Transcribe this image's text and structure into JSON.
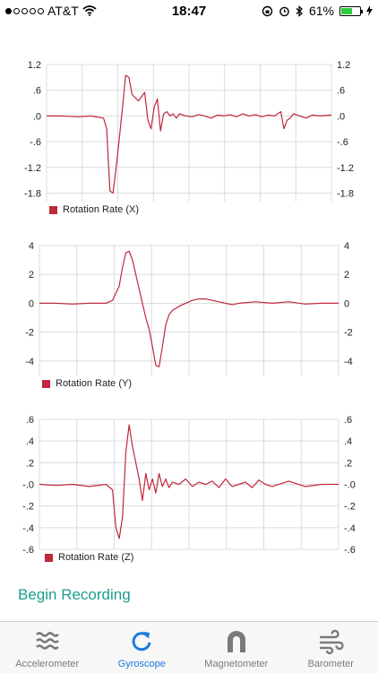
{
  "status": {
    "carrier": "AT&T",
    "time": "18:47",
    "battery_percent": "61%",
    "battery_level": 0.61,
    "signal_filled": 1,
    "signal_total": 5
  },
  "charts": [
    {
      "name": "gyro-x",
      "legend": "Rotation Rate (X)",
      "yticks": [
        "1.2",
        ".6",
        ".0",
        "-.6",
        "-1.2",
        "-1.8"
      ],
      "ylim": [
        -2.0,
        1.2
      ]
    },
    {
      "name": "gyro-y",
      "legend": "Rotation Rate (Y)",
      "yticks": [
        "4",
        "2",
        "0",
        "-2",
        "-4"
      ],
      "ylim": [
        -5,
        4
      ]
    },
    {
      "name": "gyro-z",
      "legend": "Rotation Rate (Z)",
      "yticks": [
        ".6",
        ".4",
        ".2",
        "-.0",
        "-.2",
        "-.4",
        "-.6"
      ],
      "ylim": [
        -0.6,
        0.6
      ]
    }
  ],
  "chart_data": [
    {
      "type": "line",
      "title": "",
      "series": [
        {
          "name": "Rotation Rate (X)",
          "color": "#c0283b",
          "x": [
            0,
            10,
            20,
            28,
            36,
            38,
            40,
            42,
            44,
            46,
            48,
            50,
            52,
            54,
            58,
            62,
            64,
            66,
            68,
            70,
            72,
            74,
            76,
            78,
            80,
            82,
            84,
            88,
            92,
            96,
            100,
            104,
            108,
            112,
            116,
            120,
            124,
            128,
            132,
            136,
            140,
            144,
            148,
            150,
            152,
            154,
            156,
            160,
            164,
            168,
            172,
            180
          ],
          "y": [
            0,
            0.0,
            -0.02,
            0.0,
            -0.05,
            -0.3,
            -1.75,
            -1.8,
            -1.2,
            -0.5,
            0.2,
            0.95,
            0.9,
            0.5,
            0.35,
            0.55,
            -0.1,
            -0.3,
            0.2,
            0.4,
            -0.35,
            0.05,
            0.1,
            0.0,
            0.05,
            -0.05,
            0.05,
            0.0,
            -0.02,
            0.03,
            0.0,
            -0.05,
            0.02,
            0.0,
            0.03,
            -0.02,
            0.05,
            0.0,
            0.03,
            -0.02,
            0.02,
            0.0,
            0.1,
            -0.3,
            -0.1,
            -0.05,
            0.05,
            0.0,
            -0.05,
            0.02,
            0.0,
            0.02
          ]
        }
      ],
      "ylim": [
        -2.0,
        1.2
      ],
      "grid": true
    },
    {
      "type": "line",
      "title": "",
      "series": [
        {
          "name": "Rotation Rate (Y)",
          "color": "#c0283b",
          "x": [
            0,
            10,
            20,
            30,
            40,
            44,
            48,
            50,
            52,
            54,
            56,
            58,
            60,
            62,
            64,
            66,
            68,
            70,
            72,
            74,
            76,
            78,
            80,
            84,
            88,
            92,
            96,
            100,
            104,
            108,
            112,
            116,
            120,
            130,
            140,
            150,
            160,
            170,
            180
          ],
          "y": [
            0,
            0.0,
            -0.05,
            0.0,
            0.0,
            0.2,
            1.2,
            2.5,
            3.5,
            3.6,
            3.0,
            2.0,
            1.0,
            0.0,
            -1.0,
            -1.8,
            -3.0,
            -4.3,
            -4.4,
            -3.0,
            -1.5,
            -0.8,
            -0.5,
            -0.2,
            0.0,
            0.2,
            0.3,
            0.3,
            0.2,
            0.1,
            0.0,
            -0.1,
            0.0,
            0.1,
            0.0,
            0.1,
            -0.05,
            0.0,
            0.0
          ]
        }
      ],
      "ylim": [
        -5,
        4
      ],
      "grid": true
    },
    {
      "type": "line",
      "title": "",
      "series": [
        {
          "name": "Rotation Rate (Z)",
          "color": "#c0283b",
          "x": [
            0,
            10,
            20,
            30,
            40,
            44,
            46,
            48,
            50,
            52,
            54,
            56,
            58,
            60,
            62,
            64,
            66,
            68,
            70,
            72,
            74,
            76,
            78,
            80,
            84,
            88,
            92,
            96,
            100,
            104,
            108,
            112,
            116,
            120,
            124,
            128,
            132,
            136,
            140,
            150,
            160,
            170,
            180
          ],
          "y": [
            0,
            -0.01,
            0.0,
            -0.02,
            0.0,
            -0.05,
            -0.4,
            -0.5,
            -0.3,
            0.3,
            0.55,
            0.35,
            0.2,
            0.05,
            -0.15,
            0.1,
            -0.05,
            0.05,
            -0.08,
            0.1,
            -0.02,
            0.05,
            -0.03,
            0.02,
            0.0,
            0.05,
            -0.02,
            0.02,
            0.0,
            0.03,
            -0.03,
            0.05,
            -0.02,
            0.0,
            0.02,
            -0.03,
            0.04,
            0.0,
            -0.02,
            0.03,
            -0.02,
            0.0,
            0.0
          ]
        }
      ],
      "ylim": [
        -0.6,
        0.6
      ],
      "grid": true
    }
  ],
  "begin_recording": "Begin Recording",
  "tabs": [
    {
      "name": "accelerometer",
      "label": "Accelerometer",
      "icon": "waves-icon",
      "active": false
    },
    {
      "name": "gyroscope",
      "label": "Gyroscope",
      "icon": "rotate-icon",
      "active": true
    },
    {
      "name": "magnetometer",
      "label": "Magnetometer",
      "icon": "magnet-icon",
      "active": false
    },
    {
      "name": "barometer",
      "label": "Barometer",
      "icon": "wind-icon",
      "active": false
    }
  ]
}
